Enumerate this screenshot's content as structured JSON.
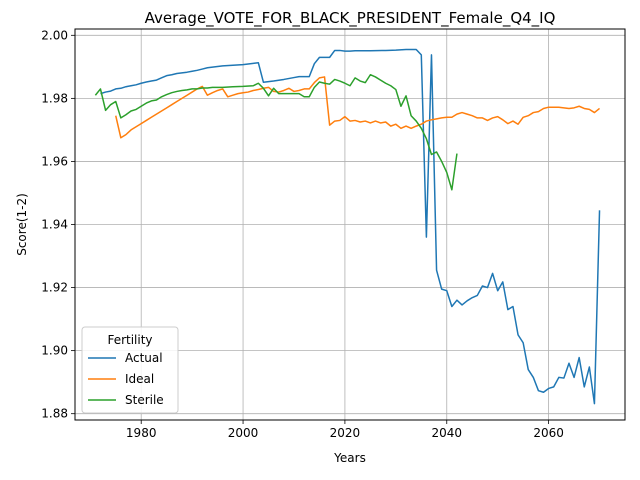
{
  "chart_data": {
    "type": "line",
    "title": "Average_VOTE_FOR_BLACK_PRESIDENT_Female_Q4_IQ",
    "xlabel": "Years",
    "ylabel": "Score(1-2)",
    "xlim": [
      1967,
      2075
    ],
    "ylim": [
      1.878,
      2.002
    ],
    "xticks": [
      1980,
      2000,
      2020,
      2040,
      2060
    ],
    "xtick_labels": [
      "1980",
      "2000",
      "2020",
      "2040",
      "2060"
    ],
    "yticks": [
      1.88,
      1.9,
      1.92,
      1.94,
      1.96,
      1.98,
      2.0
    ],
    "ytick_labels": [
      "1.88",
      "1.90",
      "1.92",
      "1.94",
      "1.96",
      "1.98",
      "2.00"
    ],
    "grid": true,
    "legend": {
      "title": "Fertility",
      "placement": "lower-left"
    },
    "series": [
      {
        "name": "Actual",
        "color": "#1f77b4",
        "points": [
          [
            1972,
            1.9815
          ],
          [
            1973,
            1.982
          ],
          [
            1974,
            1.9823
          ],
          [
            1975,
            1.983
          ],
          [
            1976,
            1.9832
          ],
          [
            1977,
            1.9837
          ],
          [
            1978,
            1.984
          ],
          [
            1979,
            1.9843
          ],
          [
            1980,
            1.9848
          ],
          [
            1981,
            1.9852
          ],
          [
            1982,
            1.9855
          ],
          [
            1983,
            1.9858
          ],
          [
            1984,
            1.9865
          ],
          [
            1985,
            1.9872
          ],
          [
            1986,
            1.9875
          ],
          [
            1987,
            1.9879
          ],
          [
            1988,
            1.9881
          ],
          [
            1989,
            1.9883
          ],
          [
            1990,
            1.9886
          ],
          [
            1991,
            1.9889
          ],
          [
            1992,
            1.9893
          ],
          [
            1993,
            1.9897
          ],
          [
            1994,
            1.9899
          ],
          [
            1995,
            1.9901
          ],
          [
            1996,
            1.9903
          ],
          [
            1998,
            1.9905
          ],
          [
            2000,
            1.9907
          ],
          [
            2002,
            1.9911
          ],
          [
            2003,
            1.9913
          ],
          [
            2004,
            1.9851
          ],
          [
            2006,
            1.9855
          ],
          [
            2008,
            1.986
          ],
          [
            2010,
            1.9866
          ],
          [
            2011,
            1.9869
          ],
          [
            2012,
            1.9869
          ],
          [
            2013,
            1.9869
          ],
          [
            2014,
            1.991
          ],
          [
            2015,
            1.993
          ],
          [
            2017,
            1.993
          ],
          [
            2018,
            1.9952
          ],
          [
            2019,
            1.9952
          ],
          [
            2020,
            1.995
          ],
          [
            2021,
            1.995
          ],
          [
            2022,
            1.9951
          ],
          [
            2025,
            1.9951
          ],
          [
            2028,
            1.9952
          ],
          [
            2030,
            1.9953
          ],
          [
            2032,
            1.9955
          ],
          [
            2033,
            1.9955
          ],
          [
            2034,
            1.9955
          ],
          [
            2035,
            1.9938
          ],
          [
            2036,
            1.936
          ],
          [
            2037,
            1.9938
          ],
          [
            2038,
            1.9255
          ],
          [
            2039,
            1.9195
          ],
          [
            2040,
            1.919
          ],
          [
            2041,
            1.914
          ],
          [
            2042,
            1.916
          ],
          [
            2043,
            1.9145
          ],
          [
            2044,
            1.9158
          ],
          [
            2045,
            1.9168
          ],
          [
            2046,
            1.9175
          ],
          [
            2047,
            1.9205
          ],
          [
            2048,
            1.92
          ],
          [
            2049,
            1.9245
          ],
          [
            2050,
            1.919
          ],
          [
            2051,
            1.9218
          ],
          [
            2052,
            1.913
          ],
          [
            2053,
            1.914
          ],
          [
            2054,
            1.905
          ],
          [
            2055,
            1.9025
          ],
          [
            2056,
            1.894
          ],
          [
            2057,
            1.8915
          ],
          [
            2058,
            1.8873
          ],
          [
            2059,
            1.8868
          ],
          [
            2060,
            1.888
          ],
          [
            2061,
            1.8885
          ],
          [
            2062,
            1.8915
          ],
          [
            2063,
            1.8913
          ],
          [
            2064,
            1.896
          ],
          [
            2065,
            1.8915
          ],
          [
            2066,
            1.8978
          ],
          [
            2067,
            1.8885
          ],
          [
            2068,
            1.8948
          ],
          [
            2069,
            1.8832
          ],
          [
            2070,
            1.9445
          ]
        ]
      },
      {
        "name": "Ideal",
        "color": "#ff7f0e",
        "points": [
          [
            1975,
            1.9745
          ],
          [
            1976,
            1.9675
          ],
          [
            1977,
            1.9685
          ],
          [
            1978,
            1.97
          ],
          [
            1979,
            1.971
          ],
          [
            1980,
            1.972
          ],
          [
            1981,
            1.973
          ],
          [
            1982,
            1.974
          ],
          [
            1983,
            1.975
          ],
          [
            1984,
            1.976
          ],
          [
            1985,
            1.977
          ],
          [
            1986,
            1.978
          ],
          [
            1987,
            1.979
          ],
          [
            1988,
            1.98
          ],
          [
            1989,
            1.981
          ],
          [
            1990,
            1.982
          ],
          [
            1991,
            1.983
          ],
          [
            1992,
            1.9838
          ],
          [
            1993,
            1.981
          ],
          [
            1994,
            1.9818
          ],
          [
            1995,
            1.9825
          ],
          [
            1996,
            1.983
          ],
          [
            1997,
            1.9805
          ],
          [
            1998,
            1.981
          ],
          [
            1999,
            1.9815
          ],
          [
            2000,
            1.9818
          ],
          [
            2001,
            1.982
          ],
          [
            2002,
            1.9825
          ],
          [
            2003,
            1.9828
          ],
          [
            2004,
            1.9832
          ],
          [
            2005,
            1.9835
          ],
          [
            2006,
            1.9822
          ],
          [
            2007,
            1.982
          ],
          [
            2008,
            1.9825
          ],
          [
            2009,
            1.9832
          ],
          [
            2010,
            1.9822
          ],
          [
            2011,
            1.9825
          ],
          [
            2012,
            1.983
          ],
          [
            2013,
            1.983
          ],
          [
            2014,
            1.985
          ],
          [
            2015,
            1.9865
          ],
          [
            2016,
            1.9868
          ],
          [
            2017,
            1.9715
          ],
          [
            2018,
            1.9728
          ],
          [
            2019,
            1.973
          ],
          [
            2020,
            1.9742
          ],
          [
            2021,
            1.9728
          ],
          [
            2022,
            1.973
          ],
          [
            2023,
            1.9725
          ],
          [
            2024,
            1.9728
          ],
          [
            2025,
            1.9722
          ],
          [
            2026,
            1.9728
          ],
          [
            2027,
            1.9722
          ],
          [
            2028,
            1.9725
          ],
          [
            2029,
            1.9712
          ],
          [
            2030,
            1.9718
          ],
          [
            2031,
            1.9705
          ],
          [
            2032,
            1.9712
          ],
          [
            2033,
            1.9705
          ],
          [
            2034,
            1.9712
          ],
          [
            2035,
            1.9718
          ],
          [
            2036,
            1.9728
          ],
          [
            2037,
            1.9732
          ],
          [
            2038,
            1.9735
          ],
          [
            2039,
            1.9738
          ],
          [
            2040,
            1.974
          ],
          [
            2041,
            1.974
          ],
          [
            2042,
            1.975
          ],
          [
            2043,
            1.9755
          ],
          [
            2044,
            1.975
          ],
          [
            2045,
            1.9745
          ],
          [
            2046,
            1.9738
          ],
          [
            2047,
            1.9738
          ],
          [
            2048,
            1.973
          ],
          [
            2049,
            1.9738
          ],
          [
            2050,
            1.9742
          ],
          [
            2051,
            1.9732
          ],
          [
            2052,
            1.972
          ],
          [
            2053,
            1.9728
          ],
          [
            2054,
            1.9718
          ],
          [
            2055,
            1.974
          ],
          [
            2056,
            1.9745
          ],
          [
            2057,
            1.9755
          ],
          [
            2058,
            1.9758
          ],
          [
            2059,
            1.9768
          ],
          [
            2060,
            1.9772
          ],
          [
            2061,
            1.9772
          ],
          [
            2062,
            1.9772
          ],
          [
            2063,
            1.977
          ],
          [
            2064,
            1.9768
          ],
          [
            2065,
            1.977
          ],
          [
            2066,
            1.9775
          ],
          [
            2067,
            1.9768
          ],
          [
            2068,
            1.9765
          ],
          [
            2069,
            1.9755
          ],
          [
            2070,
            1.9768
          ]
        ]
      },
      {
        "name": "Sterile",
        "color": "#2ca02c",
        "points": [
          [
            1971,
            1.981
          ],
          [
            1972,
            1.983
          ],
          [
            1973,
            1.9762
          ],
          [
            1974,
            1.978
          ],
          [
            1975,
            1.979
          ],
          [
            1976,
            1.9738
          ],
          [
            1977,
            1.9748
          ],
          [
            1978,
            1.976
          ],
          [
            1979,
            1.9765
          ],
          [
            1980,
            1.9775
          ],
          [
            1981,
            1.9785
          ],
          [
            1982,
            1.9792
          ],
          [
            1983,
            1.9795
          ],
          [
            1984,
            1.9805
          ],
          [
            1985,
            1.9812
          ],
          [
            1986,
            1.9818
          ],
          [
            1987,
            1.9822
          ],
          [
            1988,
            1.9825
          ],
          [
            1989,
            1.9827
          ],
          [
            1990,
            1.983
          ],
          [
            1991,
            1.983
          ],
          [
            1992,
            1.9833
          ],
          [
            1993,
            1.9833
          ],
          [
            1994,
            1.9835
          ],
          [
            1996,
            1.9835
          ],
          [
            1998,
            1.9837
          ],
          [
            2000,
            1.9838
          ],
          [
            2002,
            1.984
          ],
          [
            2003,
            1.9848
          ],
          [
            2004,
            1.9832
          ],
          [
            2005,
            1.9808
          ],
          [
            2006,
            1.9832
          ],
          [
            2007,
            1.9815
          ],
          [
            2008,
            1.9815
          ],
          [
            2010,
            1.9815
          ],
          [
            2011,
            1.9815
          ],
          [
            2012,
            1.9805
          ],
          [
            2013,
            1.9805
          ],
          [
            2014,
            1.9835
          ],
          [
            2015,
            1.9852
          ],
          [
            2016,
            1.9848
          ],
          [
            2017,
            1.9845
          ],
          [
            2018,
            1.986
          ],
          [
            2019,
            1.9855
          ],
          [
            2020,
            1.9848
          ],
          [
            2021,
            1.984
          ],
          [
            2022,
            1.9865
          ],
          [
            2023,
            1.9855
          ],
          [
            2024,
            1.985
          ],
          [
            2025,
            1.9875
          ],
          [
            2026,
            1.9868
          ],
          [
            2027,
            1.9858
          ],
          [
            2028,
            1.9848
          ],
          [
            2029,
            1.984
          ],
          [
            2030,
            1.9828
          ],
          [
            2031,
            1.9775
          ],
          [
            2032,
            1.9808
          ],
          [
            2033,
            1.9745
          ],
          [
            2034,
            1.9728
          ],
          [
            2035,
            1.9705
          ],
          [
            2036,
            1.9672
          ],
          [
            2037,
            1.9622
          ],
          [
            2038,
            1.963
          ],
          [
            2039,
            1.96
          ],
          [
            2040,
            1.9565
          ],
          [
            2041,
            1.951
          ],
          [
            2042,
            1.9625
          ]
        ]
      }
    ]
  }
}
